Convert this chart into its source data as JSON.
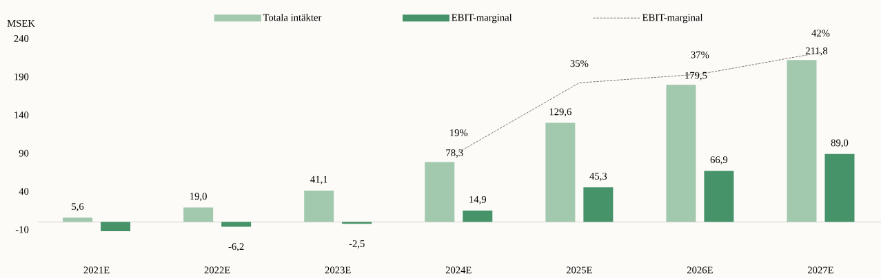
{
  "chart_data": {
    "type": "bar",
    "ylabel": "MSEK",
    "categories": [
      "2021E",
      "2022E",
      "2023E",
      "2024E",
      "2025E",
      "2026E",
      "2027E"
    ],
    "ylim": [
      -13,
      240
    ],
    "yticks": [
      240,
      190,
      140,
      90,
      40,
      -10
    ],
    "legend": "top",
    "grid": false,
    "series": [
      {
        "name": "Totala intäkter",
        "type": "bar",
        "color": "#a2c8ae",
        "values": [
          5.6,
          19.0,
          41.1,
          78.3,
          129.6,
          179.5,
          211.8
        ],
        "value_labels": [
          "5,6",
          "19,0",
          "41,1",
          "78,3",
          "129,6",
          "179,5",
          "211,8"
        ]
      },
      {
        "name": "EBIT-marginal",
        "type": "bar",
        "color": "#46936a",
        "values": [
          -12,
          -6.2,
          -2.5,
          14.9,
          45.3,
          66.9,
          89.0
        ],
        "value_labels": [
          null,
          "-6,2",
          "-2,5",
          "14,9",
          "45,3",
          "66,9",
          "89,0"
        ]
      },
      {
        "name": "EBIT-marginal",
        "type": "line",
        "axis": "y2",
        "color": "#000000",
        "line_style": "dashed",
        "marker": "none",
        "values": [
          null,
          null,
          null,
          19,
          35,
          37,
          42
        ],
        "value_labels": [
          null,
          null,
          null,
          "19%",
          "35%",
          "37%",
          "42%"
        ]
      }
    ]
  }
}
